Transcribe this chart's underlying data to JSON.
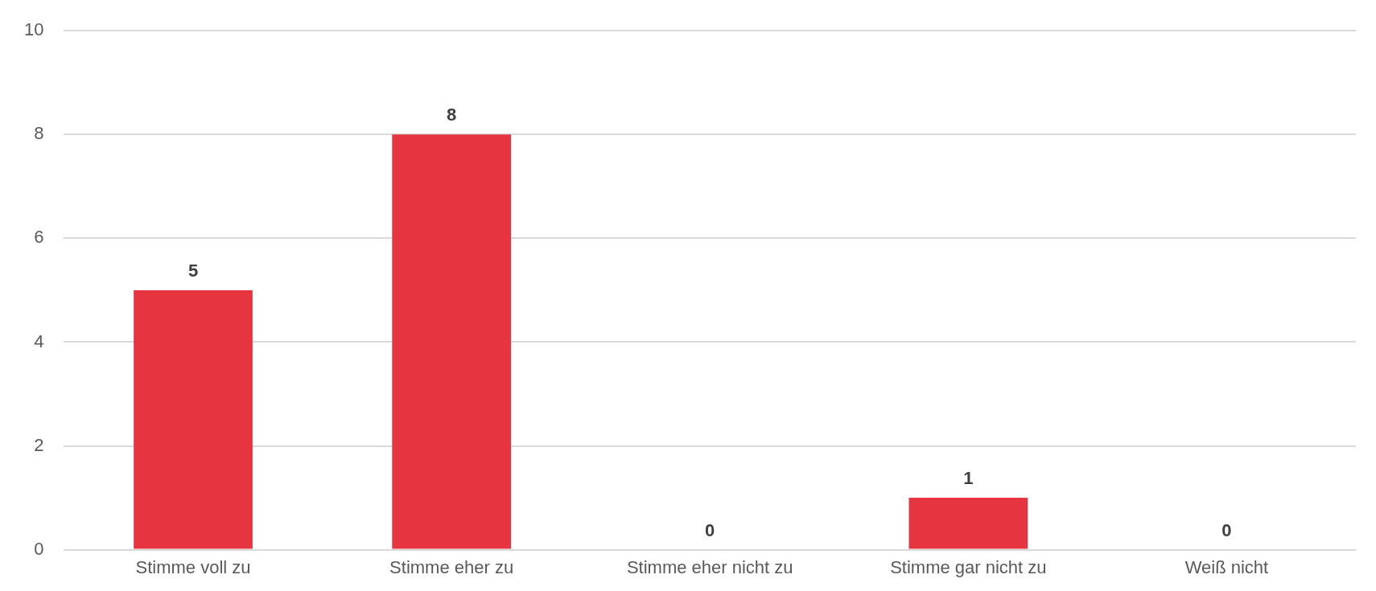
{
  "chart_data": {
    "type": "bar",
    "categories": [
      "Stimme voll zu",
      "Stimme eher zu",
      "Stimme eher nicht zu",
      "Stimme gar nicht zu",
      "Weiß nicht"
    ],
    "values": [
      5,
      8,
      0,
      1,
      0
    ],
    "color": "#e63540",
    "ylim": [
      0,
      10
    ],
    "yticks": [
      0,
      2,
      4,
      6,
      8,
      10
    ],
    "grid": "y",
    "data_labels": true,
    "legend": false
  }
}
